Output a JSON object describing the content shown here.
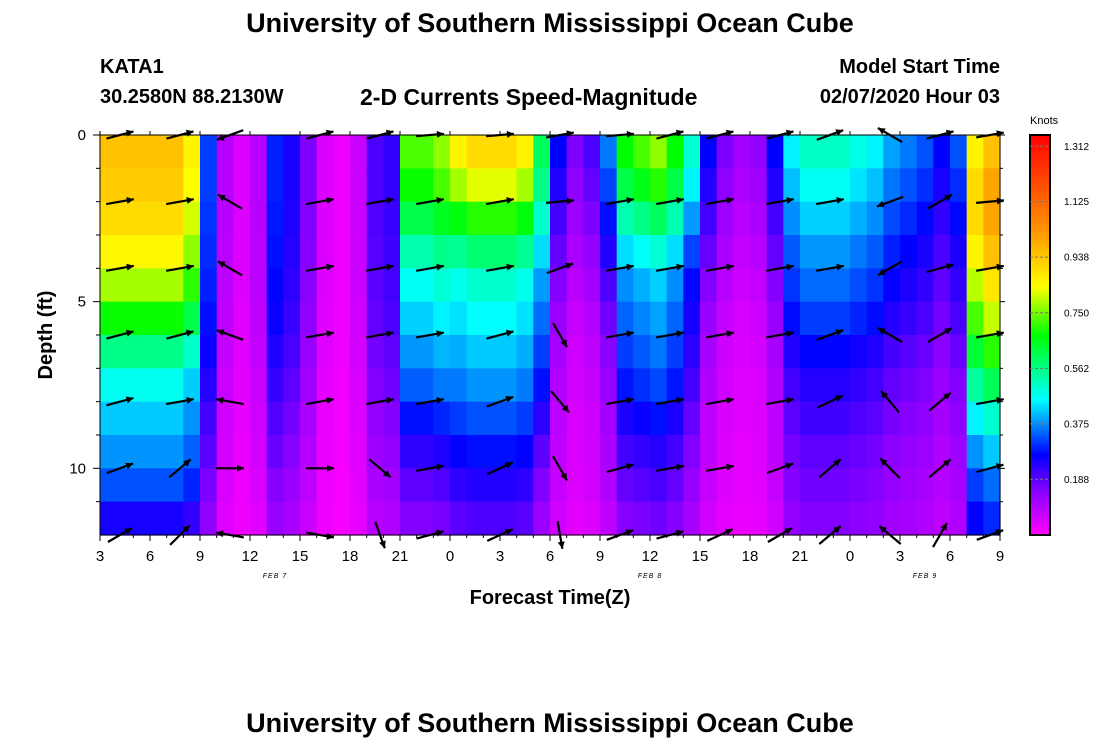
{
  "header": {
    "title": "University of Southern Mississippi Ocean Cube",
    "station": "KATA1",
    "coords": "30.2580N 88.2130W",
    "subtitle": "2-D Currents Speed-Magnitude",
    "model_label": "Model Start Time",
    "model_time": "02/07/2020 Hour 03"
  },
  "footer": {
    "title": "University of Southern Mississippi Ocean Cube"
  },
  "chart_data": {
    "type": "heatmap",
    "title": "2-D Currents Speed-Magnitude",
    "xlabel": "Forecast Time(Z)",
    "ylabel": "Depth (ft)",
    "x_unit": "hours since 2020-02-07 03Z",
    "xlim": [
      0,
      54
    ],
    "ylim": [
      12,
      0
    ],
    "x_ticks": [
      0,
      3,
      6,
      9,
      12,
      15,
      18,
      21,
      24,
      27,
      30,
      33,
      36,
      39,
      42,
      45,
      48,
      51,
      54
    ],
    "x_tick_labels": [
      "3",
      "6",
      "9",
      "12",
      "15",
      "18",
      "21",
      "0",
      "3",
      "6",
      "9",
      "12",
      "15",
      "18",
      "21",
      "0",
      "3",
      "6",
      "9"
    ],
    "y_ticks": [
      0,
      5,
      10
    ],
    "y_tick_labels": [
      "0",
      "5",
      "10"
    ],
    "date_labels": [
      {
        "x": 10.5,
        "label": "FEB 7"
      },
      {
        "x": 33,
        "label": "FEB 8"
      },
      {
        "x": 49.5,
        "label": "FEB 9"
      }
    ],
    "colorbar": {
      "label": "Knots",
      "ticks": [
        0.188,
        0.375,
        0.562,
        0.75,
        0.938,
        1.125,
        1.312
      ],
      "tick_labels": [
        "0.188",
        "0.375",
        "0.562",
        "0.750",
        "0.938",
        "1.125",
        "1.312"
      ],
      "range": [
        0,
        1.35
      ],
      "stops": [
        "#ff00ff",
        "#8800ff",
        "#0000ff",
        "#00ffff",
        "#00ff00",
        "#ffff00",
        "#ff8800",
        "#ff0000"
      ]
    },
    "depth_bins": [
      0.5,
      1.5,
      2.5,
      3.5,
      4.5,
      5.5,
      6.5,
      7.5,
      8.5,
      9.5,
      10.5,
      11.5
    ],
    "time_hours": [
      0,
      1,
      2,
      3,
      4,
      5,
      6,
      7,
      8,
      9,
      10,
      11,
      12,
      13,
      14,
      15,
      16,
      17,
      18,
      19,
      20,
      21,
      22,
      23,
      24,
      25,
      26,
      27,
      28,
      29,
      30,
      31,
      32,
      33,
      34,
      35,
      36,
      37,
      38,
      39,
      40,
      41,
      42,
      43,
      44,
      45,
      46,
      47,
      48,
      49,
      50,
      51,
      52,
      53
    ],
    "speed_profiles": [
      {
        "name": "P1",
        "values": [
          0.95,
          0.93,
          0.9,
          0.85,
          0.78,
          0.68,
          0.56,
          0.47,
          0.42,
          0.38,
          0.33,
          0.25
        ]
      },
      {
        "name": "P2",
        "values": [
          0.45,
          0.45,
          0.44,
          0.43,
          0.42,
          0.4,
          0.37,
          0.34,
          0.3,
          0.27,
          0.23,
          0.2
        ]
      },
      {
        "name": "P3",
        "values": [
          0.9,
          0.82,
          0.7,
          0.58,
          0.5,
          0.46,
          0.42,
          0.38,
          0.33,
          0.28,
          0.24,
          0.2
        ]
      },
      {
        "name": "P4",
        "values": [
          0.85,
          0.8,
          0.72,
          0.62,
          0.55,
          0.5,
          0.45,
          0.4,
          0.33,
          0.27,
          0.22,
          0.18
        ]
      },
      {
        "name": "P5",
        "values": [
          0.6,
          0.55,
          0.5,
          0.45,
          0.41,
          0.37,
          0.32,
          0.28,
          0.25,
          0.22,
          0.2,
          0.18
        ]
      },
      {
        "name": "P6",
        "values": [
          0.45,
          0.4,
          0.35,
          0.3,
          0.25,
          0.21,
          0.18,
          0.16,
          0.14,
          0.13,
          0.12,
          0.1
        ]
      },
      {
        "name": "P7",
        "values": [
          0.95,
          1.0,
          1.0,
          0.95,
          0.88,
          0.8,
          0.7,
          0.6,
          0.5,
          0.42,
          0.35,
          0.3
        ]
      }
    ],
    "time_profile_weights": [
      [
        0,
        1,
        1
      ],
      [
        1,
        1,
        1
      ],
      [
        2,
        1,
        1
      ],
      [
        3,
        1,
        1
      ],
      [
        4,
        1,
        1
      ],
      [
        5,
        1,
        0.9
      ],
      [
        6,
        2,
        0.7
      ],
      [
        7,
        2,
        0.2
      ],
      [
        8,
        2,
        0.1
      ],
      [
        9,
        2,
        0.2
      ],
      [
        10,
        2,
        0.65
      ],
      [
        11,
        2,
        0.55
      ],
      [
        12,
        2,
        0.35
      ],
      [
        13,
        2,
        0.1
      ],
      [
        14,
        2,
        0.05
      ],
      [
        15,
        2,
        0.15
      ],
      [
        16,
        2,
        0.45
      ],
      [
        17,
        2,
        0.5
      ],
      [
        18,
        4,
        0.85
      ],
      [
        19,
        4,
        0.85
      ],
      [
        20,
        4,
        0.9
      ],
      [
        21,
        3,
        0.95
      ],
      [
        22,
        3,
        1
      ],
      [
        23,
        3,
        1
      ],
      [
        24,
        3,
        1
      ],
      [
        25,
        3,
        0.95
      ],
      [
        26,
        4,
        0.7
      ],
      [
        27,
        6,
        0.6
      ],
      [
        28,
        6,
        0.35
      ],
      [
        29,
        6,
        0.45
      ],
      [
        30,
        6,
        0.8
      ],
      [
        31,
        3,
        0.75
      ],
      [
        32,
        3,
        0.8
      ],
      [
        33,
        3,
        0.85
      ],
      [
        34,
        3,
        0.75
      ],
      [
        35,
        3,
        0.55
      ],
      [
        36,
        6,
        0.6
      ],
      [
        37,
        6,
        0.35
      ],
      [
        38,
        6,
        0.25
      ],
      [
        39,
        6,
        0.3
      ],
      [
        40,
        6,
        0.6
      ],
      [
        41,
        5,
        0.75
      ],
      [
        42,
        5,
        0.85
      ],
      [
        43,
        5,
        0.85
      ],
      [
        44,
        5,
        0.85
      ],
      [
        45,
        5,
        0.8
      ],
      [
        46,
        5,
        0.75
      ],
      [
        47,
        5,
        0.65
      ],
      [
        48,
        5,
        0.6
      ],
      [
        49,
        5,
        0.55
      ],
      [
        50,
        5,
        0.45
      ],
      [
        51,
        5,
        0.55
      ],
      [
        52,
        7,
        0.9
      ],
      [
        53,
        7,
        1
      ]
    ],
    "vector_depths": [
      0,
      2,
      4,
      6,
      8,
      10,
      12
    ],
    "vector_times": [
      1.2,
      4.8,
      7.8,
      13.2,
      16.8,
      19.8,
      24,
      27.6,
      31.2,
      34.2,
      37.2,
      40.8,
      43.8,
      47.4,
      50.4,
      53.4
    ],
    "vector_angles_deg": [
      [
        15,
        15,
        200,
        15,
        15,
        5,
        5,
        10,
        5,
        15,
        15,
        15,
        20,
        150,
        15,
        10
      ],
      [
        10,
        10,
        150,
        10,
        10,
        10,
        10,
        5,
        10,
        10,
        10,
        10,
        10,
        200,
        30,
        5
      ],
      [
        10,
        10,
        150,
        10,
        10,
        10,
        10,
        20,
        10,
        10,
        10,
        10,
        10,
        210,
        15,
        10
      ],
      [
        15,
        15,
        160,
        10,
        10,
        10,
        15,
        300,
        10,
        10,
        10,
        10,
        20,
        150,
        30,
        10
      ],
      [
        15,
        10,
        170,
        10,
        10,
        10,
        20,
        310,
        10,
        10,
        10,
        10,
        25,
        130,
        40,
        10
      ],
      [
        20,
        40,
        0,
        0,
        320,
        10,
        25,
        300,
        15,
        10,
        10,
        20,
        40,
        135,
        40,
        15
      ],
      [
        30,
        45,
        170,
        350,
        290,
        15,
        25,
        280,
        20,
        15,
        25,
        30,
        40,
        140,
        60,
        20
      ]
    ]
  }
}
